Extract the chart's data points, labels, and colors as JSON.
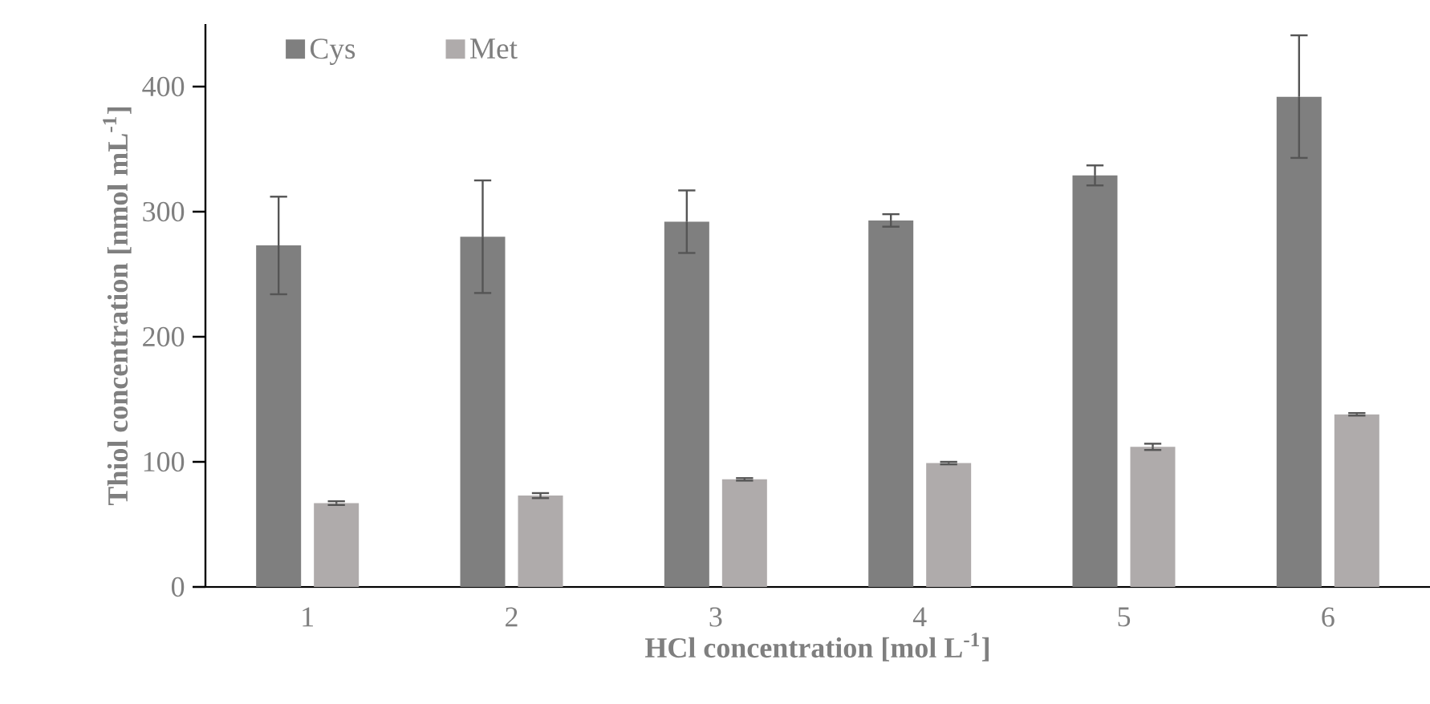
{
  "chart_data": {
    "type": "bar",
    "xlabel": "HCl concentration [mol L$^{-1}$]",
    "ylabel": "Thiol concentration [nmol mL$^{-1}$]",
    "categories": [
      "1",
      "2",
      "3",
      "4",
      "5",
      "6"
    ],
    "series": [
      {
        "name": "Cys",
        "color": "#7f7f7f",
        "values": [
          273,
          280,
          292,
          293,
          329,
          392
        ],
        "errors": [
          39,
          45,
          25,
          5,
          8,
          49
        ]
      },
      {
        "name": "Met",
        "color": "#afabab",
        "values": [
          67,
          73,
          86,
          99,
          112,
          138
        ],
        "errors": [
          1.5,
          2,
          1,
          1,
          2.5,
          1
        ]
      }
    ],
    "ylim": [
      0,
      450
    ],
    "yticks": [
      0,
      100,
      200,
      300,
      400
    ],
    "legend": "top left"
  }
}
